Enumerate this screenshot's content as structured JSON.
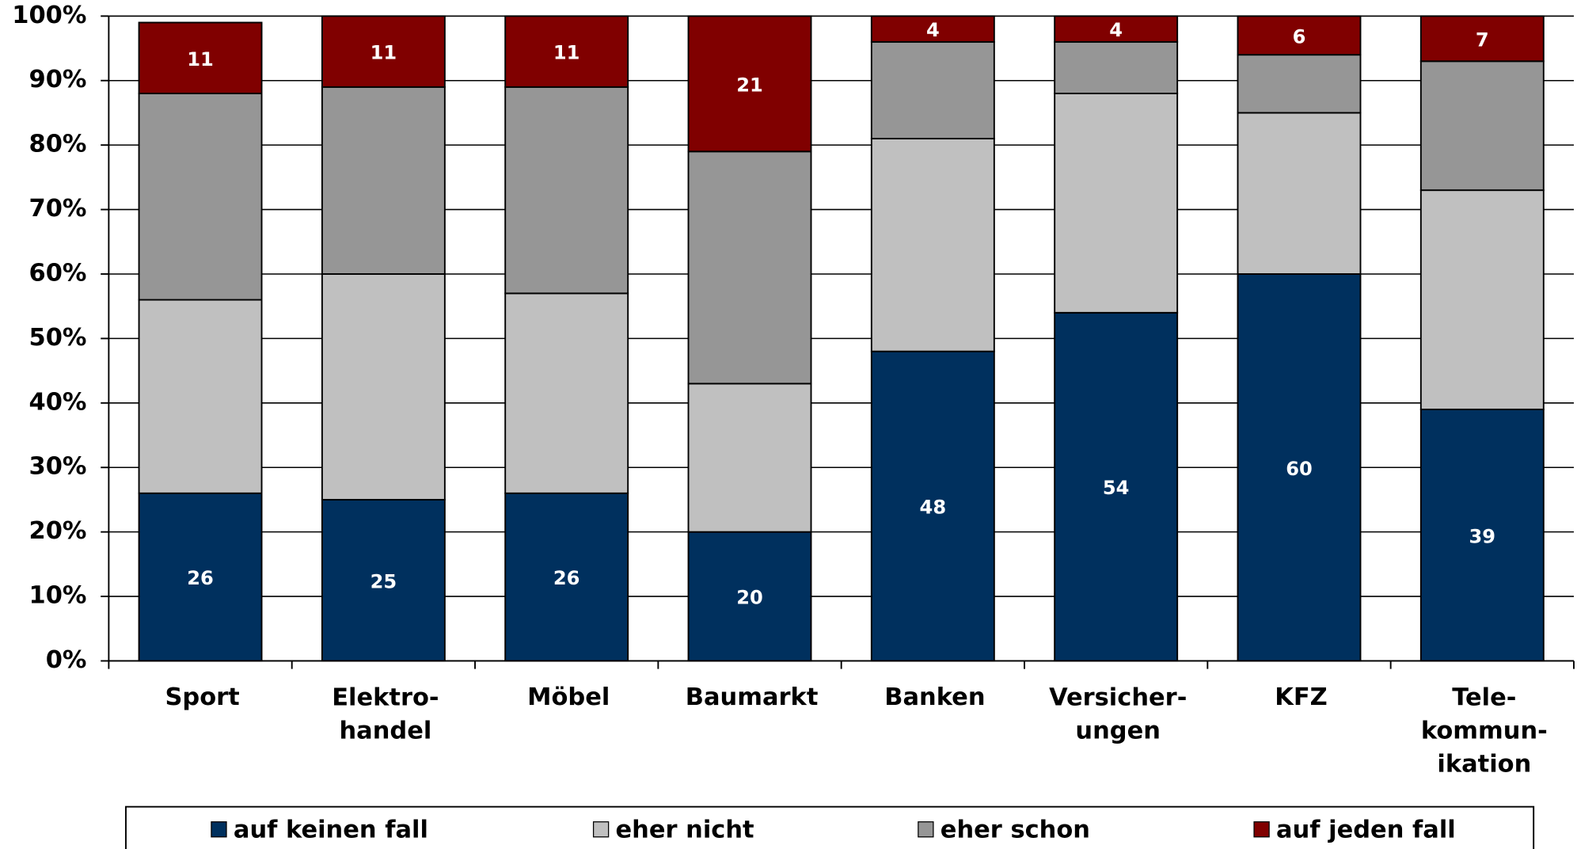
{
  "chart_data": {
    "type": "stacked_bar",
    "categories": [
      "Sport",
      "Elektro-\nhandel",
      "Möbel",
      "Baumarkt",
      "Banken",
      "Versicher-\nungen",
      "KFZ",
      "Tele-\nkommun-\nikation"
    ],
    "series": [
      {
        "name": "auf keinen fall",
        "color": "#00305e",
        "data_labels": true,
        "values": [
          26,
          25,
          26,
          20,
          48,
          54,
          60,
          39
        ]
      },
      {
        "name": "eher nicht",
        "color": "#c0c0c0",
        "data_labels": false,
        "values": [
          30,
          35,
          31,
          23,
          33,
          34,
          25,
          34
        ]
      },
      {
        "name": "eher schon",
        "color": "#969696",
        "data_labels": false,
        "values": [
          32,
          29,
          32,
          36,
          15,
          8,
          9,
          20
        ]
      },
      {
        "name": "auf jeden fall",
        "color": "#800000",
        "data_labels": true,
        "values": [
          11,
          11,
          11,
          21,
          4,
          4,
          6,
          7
        ]
      }
    ],
    "ylim": [
      0,
      100
    ],
    "yticks": [
      {
        "value": 0,
        "label": "0%"
      },
      {
        "value": 10,
        "label": "10%"
      },
      {
        "value": 20,
        "label": "20%"
      },
      {
        "value": 30,
        "label": "30%"
      },
      {
        "value": 40,
        "label": "40%"
      },
      {
        "value": 50,
        "label": "50%"
      },
      {
        "value": 60,
        "label": "60%"
      },
      {
        "value": 70,
        "label": "70%"
      },
      {
        "value": 80,
        "label": "80%"
      },
      {
        "value": 90,
        "label": "90%"
      },
      {
        "value": 100,
        "label": "100%"
      }
    ],
    "grid": true,
    "legend": "bottom"
  }
}
